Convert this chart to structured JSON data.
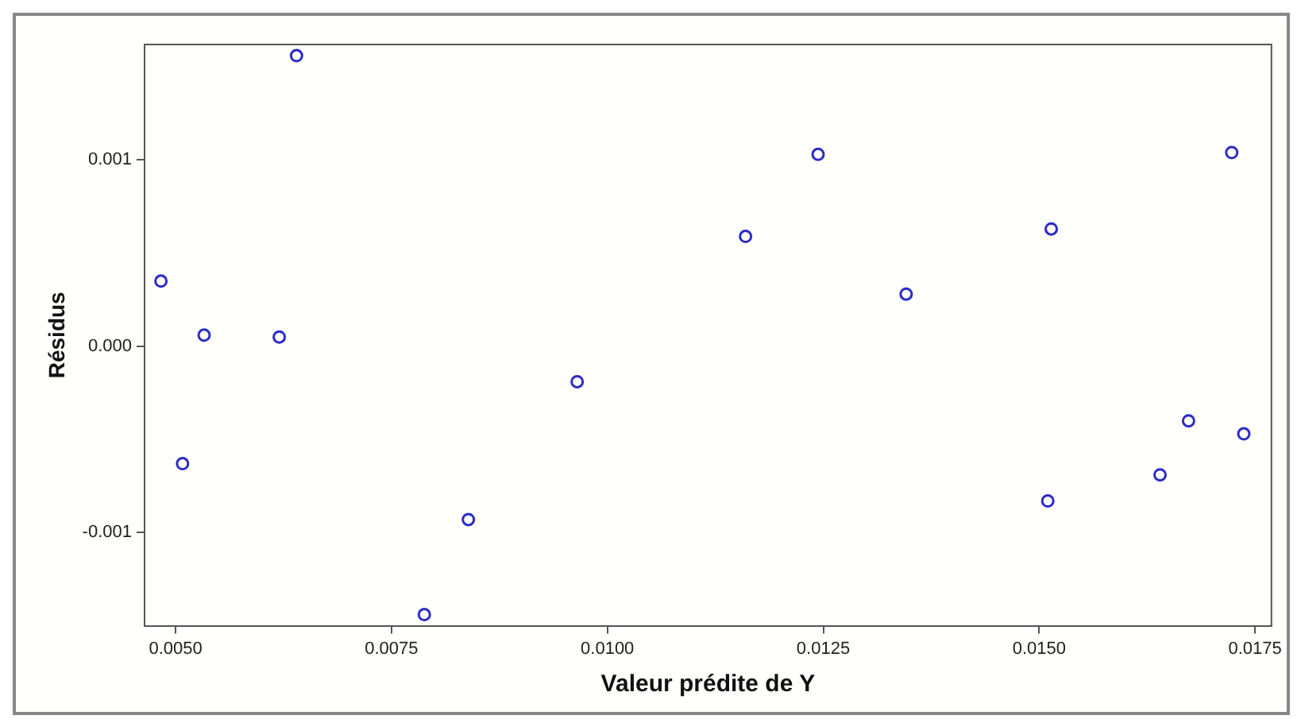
{
  "chart_data": {
    "type": "scatter",
    "xlabel": "Valeur prédite de Y",
    "ylabel": "Résidus",
    "x": [
      0.00483,
      0.0064,
      0.00533,
      0.0062,
      0.00508,
      0.00839,
      0.00788,
      0.00965,
      0.0116,
      0.01244,
      0.01346,
      0.01514,
      0.0151,
      0.0164,
      0.01673,
      0.01737,
      0.01723
    ],
    "series": [
      {
        "color": "#2b2bc8",
        "values": [
          0.00035,
          0.00156,
          6e-05,
          5e-05,
          -0.00063,
          -0.00093,
          -0.00144,
          -0.00019,
          0.00059,
          0.00103,
          0.00028,
          0.00063,
          -0.00083,
          -0.00069,
          -0.0004,
          -0.00047,
          0.00104
        ]
      }
    ],
    "xlim": [
      0.00464,
      0.01769
    ],
    "ylim": [
      -0.0015,
      0.00162
    ],
    "xticks": [
      {
        "value": 0.005,
        "label": "0.0050"
      },
      {
        "value": 0.0075,
        "label": "0.0075"
      },
      {
        "value": 0.01,
        "label": "0.0100"
      },
      {
        "value": 0.0125,
        "label": "0.0125"
      },
      {
        "value": 0.015,
        "label": "0.0150"
      },
      {
        "value": 0.0175,
        "label": "0.0175"
      }
    ],
    "yticks": [
      {
        "value": -0.001,
        "label": "-0.001"
      },
      {
        "value": 0,
        "label": "0.000"
      },
      {
        "value": 0.001,
        "label": "0.001"
      }
    ],
    "grid": false,
    "legend": false,
    "marker": "circle"
  }
}
